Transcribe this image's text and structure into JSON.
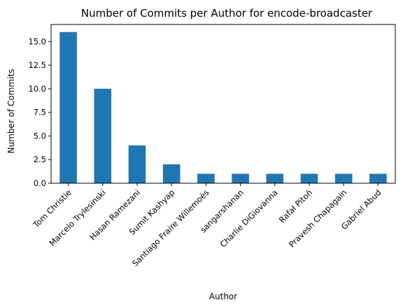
{
  "chart_data": {
    "type": "bar",
    "title": "Number of Commits per Author for encode-broadcaster",
    "xlabel": "Author",
    "ylabel": "Number of Commits",
    "categories": [
      "Tom Christie",
      "Marcelo Trylesinski",
      "Hasan Ramezani",
      "Sumit Kashyap",
      "Santiago Fraire Willemoës",
      "sangarshanan",
      "Charlie DiGiovanna",
      "Rafał Pitoń",
      "Pravesh Chapagain",
      "Gabriel Abud"
    ],
    "values": [
      16,
      10,
      4,
      2,
      1,
      1,
      1,
      1,
      1,
      1
    ],
    "ylim": [
      0,
      16.8
    ],
    "yticks": [
      0.0,
      2.5,
      5.0,
      7.5,
      10.0,
      12.5,
      15.0
    ],
    "ytick_labels": [
      "0.0",
      "2.5",
      "5.0",
      "7.5",
      "10.0",
      "12.5",
      "15.0"
    ],
    "grid": false,
    "bar_color": "#1f77b4"
  }
}
